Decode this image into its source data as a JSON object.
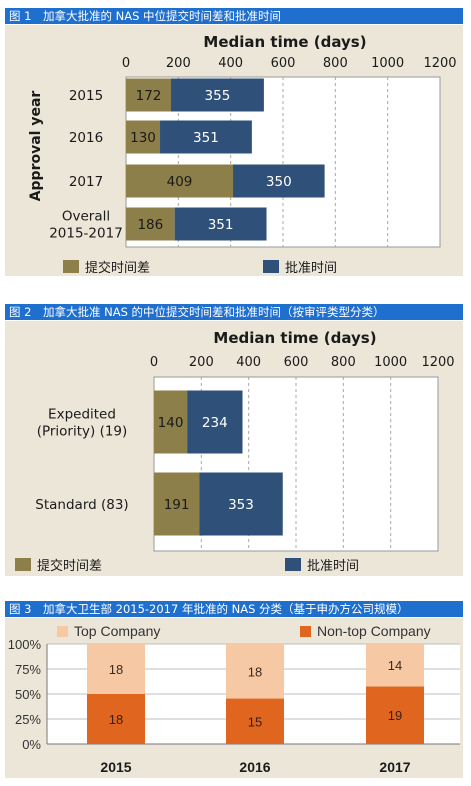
{
  "colors": {
    "submission_gap": "#8d7f4a",
    "approval_time": "#2e5079",
    "top_company": "#f6c8a4",
    "non_top_company": "#e0661f",
    "caption_bg": "#1f6fcf",
    "panel_bg": "#ebe6d8"
  },
  "chart_data": [
    {
      "type": "bar",
      "orientation": "horizontal",
      "stacked": true,
      "caption": "图 1　加拿大批准的 NAS 中位提交时间差和批准时间",
      "title": "Median time (days)",
      "ylabel": "Approval year",
      "xlim": [
        0,
        1200
      ],
      "xticks": [
        "0",
        "200",
        "400",
        "600",
        "800",
        "1000",
        "1200"
      ],
      "categories": [
        "2015",
        "2016",
        "2017",
        "Overall\n2015-2017"
      ],
      "series": [
        {
          "name": "提交时间差",
          "values": [
            172,
            130,
            409,
            186
          ]
        },
        {
          "name": "批准时间",
          "values": [
            355,
            351,
            350,
            351
          ]
        }
      ],
      "grid": true,
      "legend": "bottom"
    },
    {
      "type": "bar",
      "orientation": "horizontal",
      "stacked": true,
      "caption": "图 2　加拿大批准 NAS 的中位提交时间差和批准时间（按审评类型分类）",
      "title": "Median time (days)",
      "xlim": [
        0,
        1200
      ],
      "xticks": [
        "0",
        "200",
        "400",
        "600",
        "800",
        "1000",
        "1200"
      ],
      "categories": [
        "Expedited\n(Priority) (19)",
        "Standard (83)"
      ],
      "series": [
        {
          "name": "提交时间差",
          "values": [
            140,
            191
          ]
        },
        {
          "name": "批准时间",
          "values": [
            234,
            353
          ]
        }
      ],
      "grid": true,
      "legend": "bottom"
    },
    {
      "type": "bar",
      "orientation": "vertical",
      "stacked": true,
      "percent": true,
      "caption": "图 3　加拿大卫生部 2015-2017 年批准的 NAS 分类（基于申办方公司规模）",
      "categories": [
        "2015",
        "2016",
        "2017"
      ],
      "yticks": [
        "0%",
        "25%",
        "50%",
        "75%",
        "100%"
      ],
      "ylim": [
        0,
        100
      ],
      "series": [
        {
          "name": "Non-top Company",
          "values": [
            18,
            15,
            19
          ]
        },
        {
          "name": "Top Company",
          "values": [
            18,
            18,
            14
          ]
        }
      ],
      "grid": true,
      "legend": "top"
    }
  ]
}
